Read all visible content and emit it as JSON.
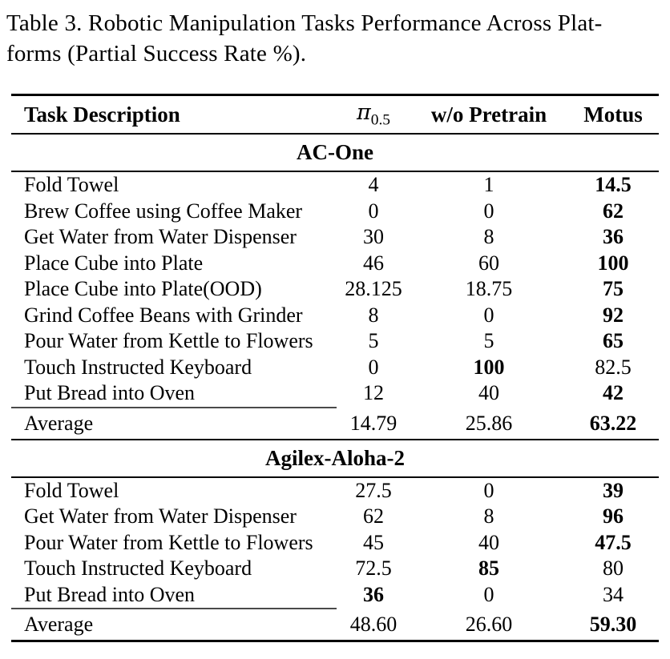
{
  "caption": {
    "lines": [
      "Table 3. Robotic Manipulation Tasks Performance Across Plat-",
      "forms (Partial Success Rate %)."
    ]
  },
  "table": {
    "columns": [
      {
        "label": "Task Description"
      },
      {
        "label": "π0.5",
        "symbol": "π",
        "subscript": "0.5"
      },
      {
        "label": "w/o Pretrain"
      },
      {
        "label": "Motus"
      }
    ],
    "sections": [
      {
        "title": "AC-One",
        "rows": [
          {
            "task": "Fold Towel",
            "values": [
              "4",
              "1",
              "14.5"
            ],
            "bold": [
              false,
              false,
              true
            ]
          },
          {
            "task": "Brew Coffee using Coffee Maker",
            "values": [
              "0",
              "0",
              "62"
            ],
            "bold": [
              false,
              false,
              true
            ]
          },
          {
            "task": "Get Water from Water Dispenser",
            "values": [
              "30",
              "8",
              "36"
            ],
            "bold": [
              false,
              false,
              true
            ]
          },
          {
            "task": "Place Cube into Plate",
            "values": [
              "46",
              "60",
              "100"
            ],
            "bold": [
              false,
              false,
              true
            ]
          },
          {
            "task": "Place Cube into Plate(OOD)",
            "values": [
              "28.125",
              "18.75",
              "75"
            ],
            "bold": [
              false,
              false,
              true
            ]
          },
          {
            "task": "Grind Coffee Beans with Grinder",
            "values": [
              "8",
              "0",
              "92"
            ],
            "bold": [
              false,
              false,
              true
            ]
          },
          {
            "task": "Pour Water from Kettle to Flowers",
            "values": [
              "5",
              "5",
              "65"
            ],
            "bold": [
              false,
              false,
              true
            ]
          },
          {
            "task": "Touch Instructed Keyboard",
            "values": [
              "0",
              "100",
              "82.5"
            ],
            "bold": [
              false,
              true,
              false
            ]
          },
          {
            "task": "Put Bread into Oven",
            "values": [
              "12",
              "40",
              "42"
            ],
            "bold": [
              false,
              false,
              true
            ]
          },
          {
            "task": "Average",
            "values": [
              "14.79",
              "25.86",
              "63.22"
            ],
            "bold": [
              false,
              false,
              true
            ],
            "is_average": true
          }
        ]
      },
      {
        "title": "Agilex-Aloha-2",
        "rows": [
          {
            "task": "Fold Towel",
            "values": [
              "27.5",
              "0",
              "39"
            ],
            "bold": [
              false,
              false,
              true
            ]
          },
          {
            "task": "Get Water from Water Dispenser",
            "values": [
              "62",
              "8",
              "96"
            ],
            "bold": [
              false,
              false,
              true
            ]
          },
          {
            "task": "Pour Water from Kettle to Flowers",
            "values": [
              "45",
              "40",
              "47.5"
            ],
            "bold": [
              false,
              false,
              true
            ]
          },
          {
            "task": "Touch Instructed Keyboard",
            "values": [
              "72.5",
              "85",
              "80"
            ],
            "bold": [
              false,
              true,
              false
            ]
          },
          {
            "task": "Put Bread into Oven",
            "values": [
              "36",
              "0",
              "34"
            ],
            "bold": [
              true,
              false,
              false
            ]
          },
          {
            "task": "Average",
            "values": [
              "48.60",
              "26.60",
              "59.30"
            ],
            "bold": [
              false,
              false,
              true
            ],
            "is_average": true
          }
        ]
      }
    ]
  }
}
